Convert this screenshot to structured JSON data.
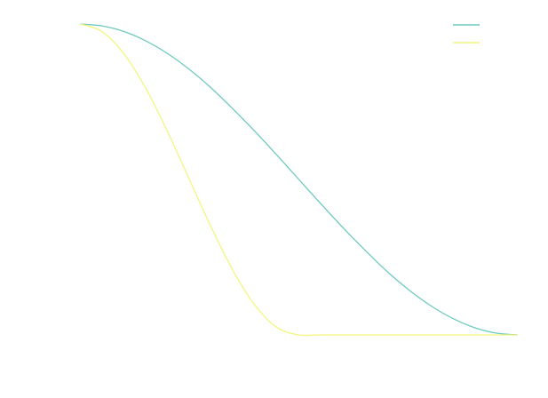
{
  "chart_data": {
    "type": "line",
    "title": "",
    "xlabel": "",
    "ylabel": "",
    "xlim": [
      0,
      1
    ],
    "ylim": [
      0,
      1
    ],
    "grid": false,
    "legend": {
      "placement": "top-right",
      "entries": [
        "",
        ""
      ]
    },
    "x": [
      0,
      0.05,
      0.1,
      0.15,
      0.2,
      0.25,
      0.3,
      0.35,
      0.4,
      0.45,
      0.5,
      0.55,
      0.6,
      0.65,
      0.7,
      0.75,
      0.8,
      0.85,
      0.9,
      0.95,
      1
    ],
    "series": [
      {
        "color": "#6fc9c1",
        "values": [
          1.0,
          0.994,
          0.976,
          0.946,
          0.905,
          0.854,
          0.794,
          0.726,
          0.654,
          0.578,
          0.5,
          0.422,
          0.346,
          0.274,
          0.206,
          0.146,
          0.095,
          0.054,
          0.024,
          0.006,
          0.0
        ]
      },
      {
        "color": "#f3f57f",
        "values": [
          1.0,
          0.976,
          0.905,
          0.794,
          0.654,
          0.5,
          0.346,
          0.206,
          0.095,
          0.024,
          0.0,
          0.0,
          0.0,
          0.0,
          0.0,
          0.0,
          0.0,
          0.0,
          0.0,
          0.0,
          0.0
        ]
      }
    ]
  }
}
